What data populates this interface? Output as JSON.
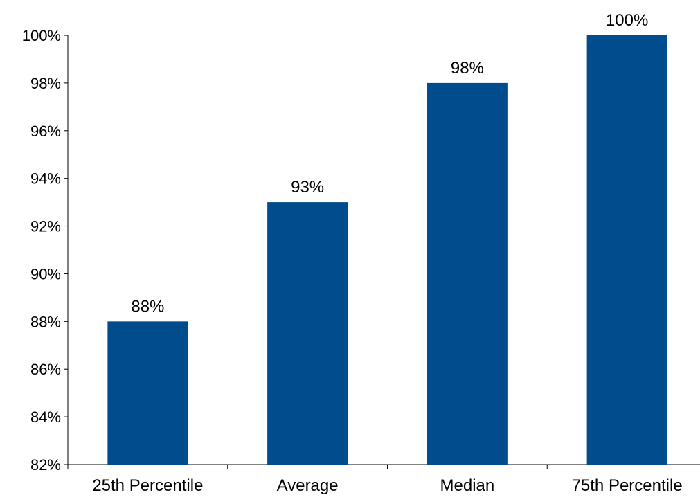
{
  "chart_data": {
    "type": "bar",
    "categories": [
      "25th Percentile",
      "Average",
      "Median",
      "75th Percentile"
    ],
    "values": [
      88,
      93,
      98,
      100
    ],
    "data_labels": [
      "88%",
      "93%",
      "98%",
      "100%"
    ],
    "title": "",
    "xlabel": "",
    "ylabel": "",
    "ylim": [
      82,
      100
    ],
    "yticks": [
      82,
      84,
      86,
      88,
      90,
      92,
      94,
      96,
      98,
      100
    ],
    "ytick_labels": [
      "82%",
      "84%",
      "86%",
      "88%",
      "90%",
      "92%",
      "94%",
      "96%",
      "98%",
      "100%"
    ],
    "grid": false,
    "legend": "none",
    "colors": {
      "bar": "#004C8C",
      "axis": "#000000"
    }
  }
}
